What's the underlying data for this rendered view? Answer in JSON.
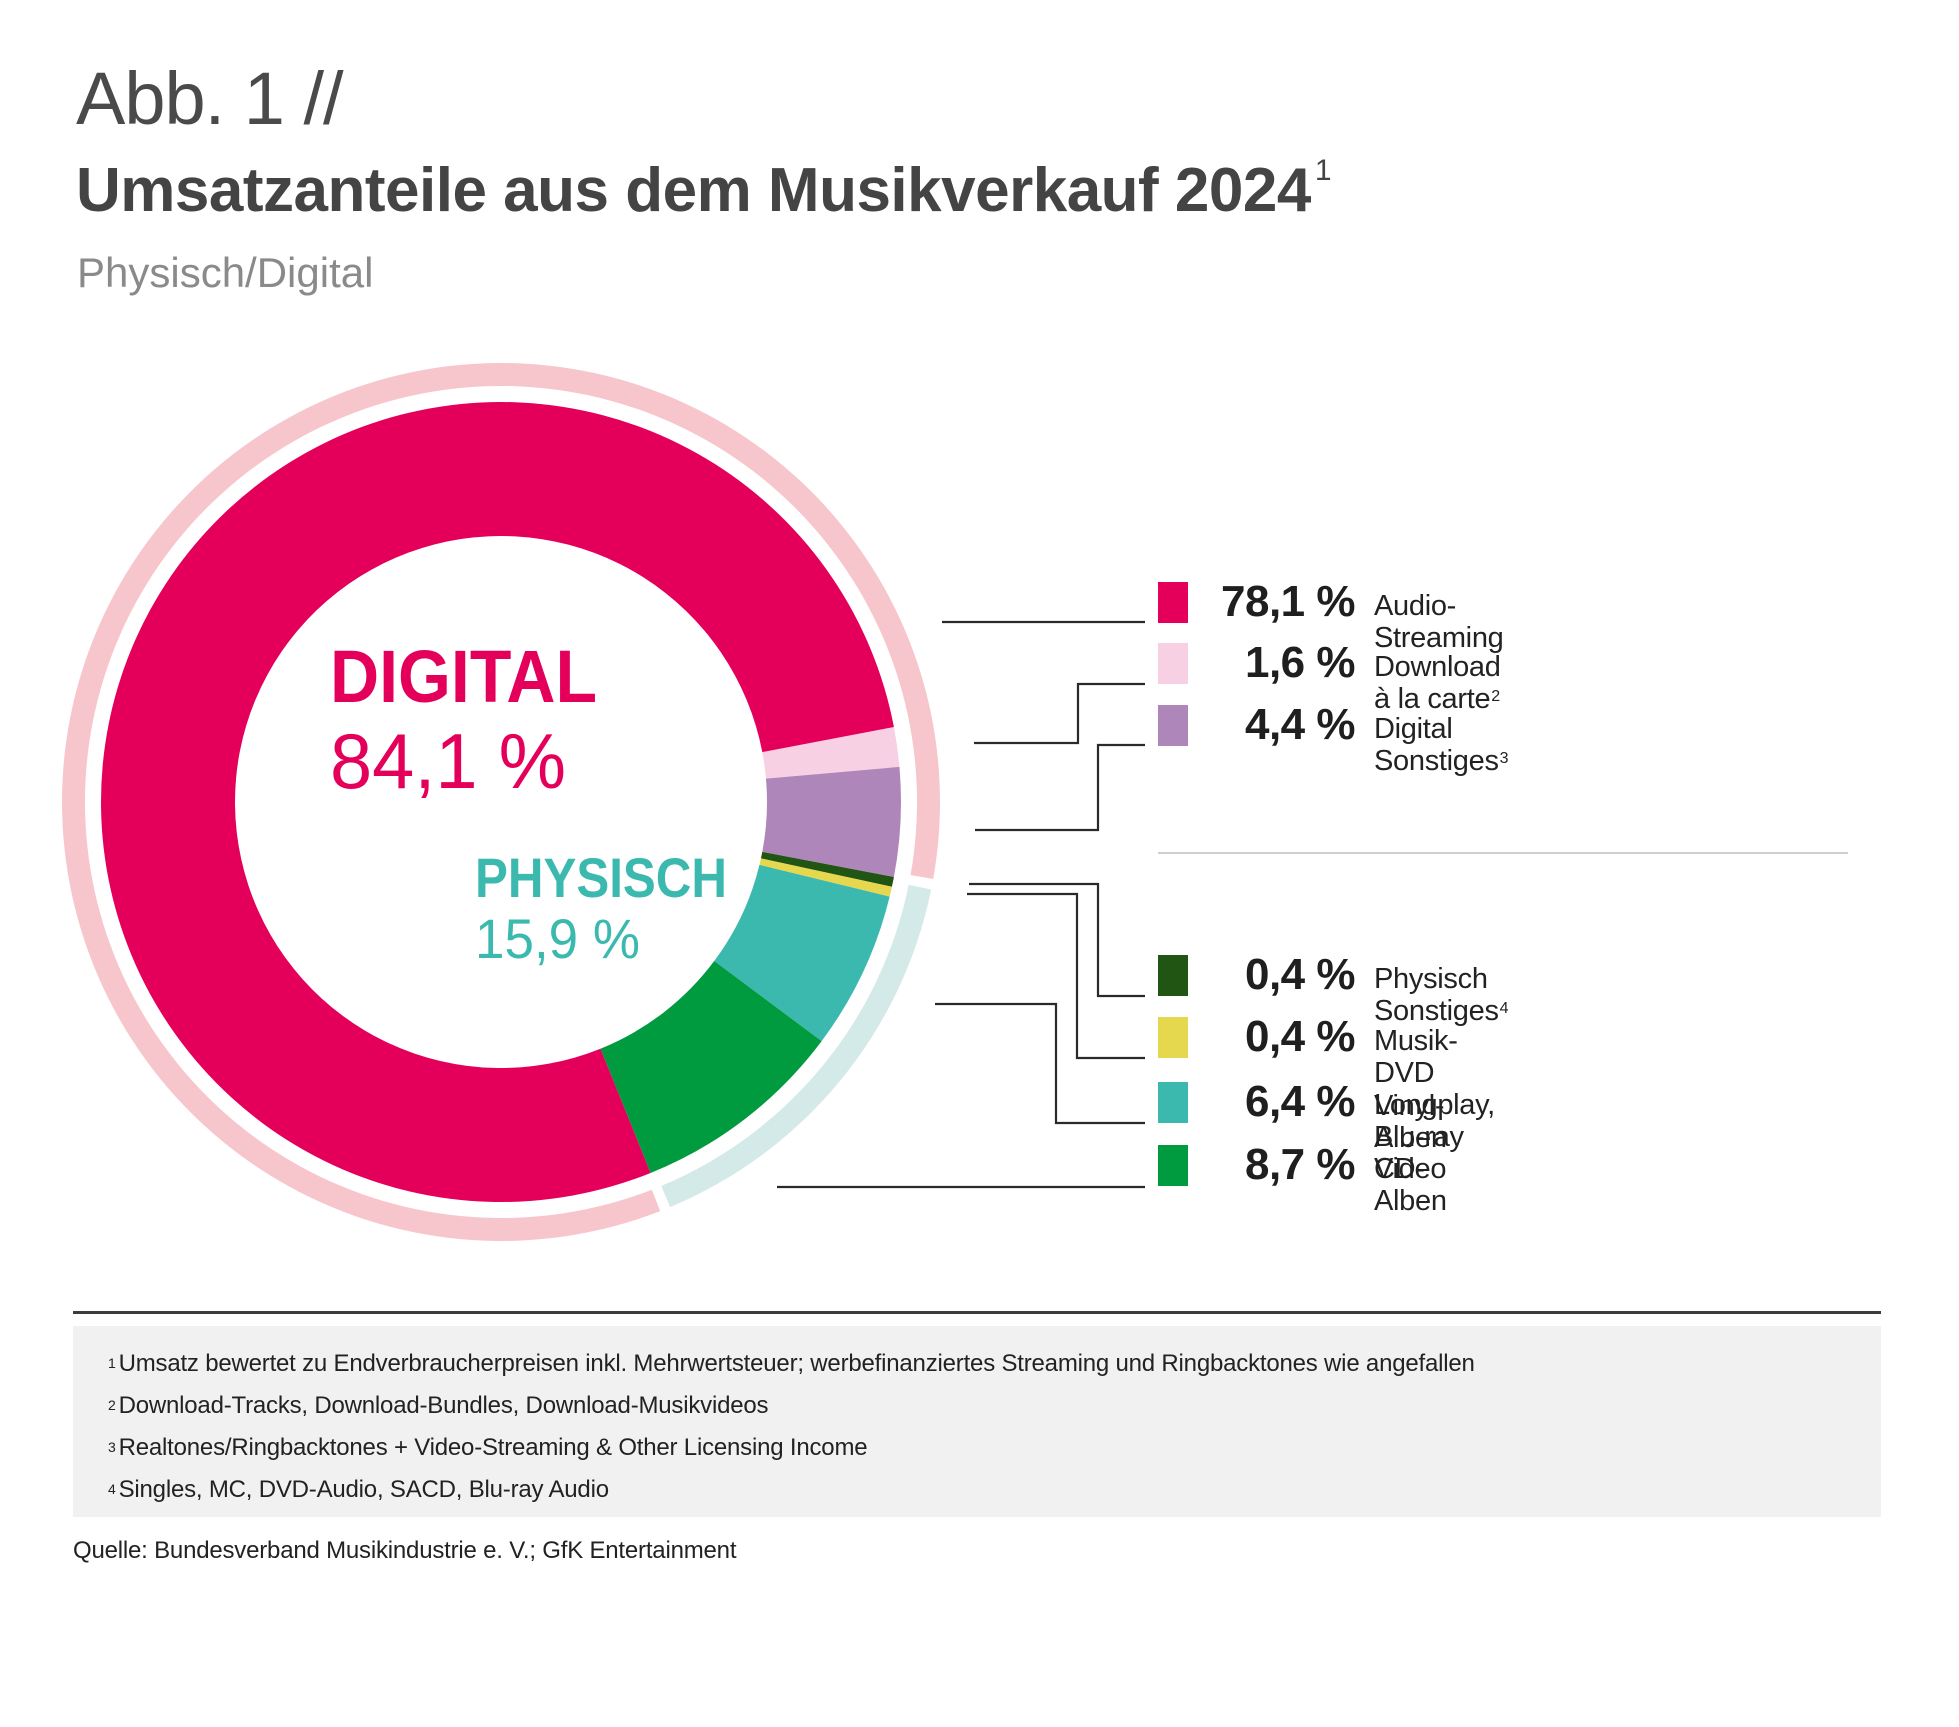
{
  "header": {
    "figure_label": "Abb. 1 //",
    "title": "Umsatzanteile aus dem Musikverkauf 2024",
    "title_footnote": "1",
    "subtitle": "Physisch/Digital"
  },
  "chart_data": {
    "type": "pie",
    "variant": "donut",
    "title": "Umsatzanteile aus dem Musikverkauf 2024",
    "subtitle": "Physisch/Digital",
    "unit": "%",
    "groups": [
      {
        "name": "DIGITAL",
        "value_label": "84,1 %",
        "value": 84.1,
        "color": "#E4005A",
        "ring_color": "#F7C6CC"
      },
      {
        "name": "PHYSISCH",
        "value_label": "15,9 %",
        "value": 15.9,
        "color": "#3CB9AF",
        "ring_color": "#D4EAE8"
      }
    ],
    "slices": [
      {
        "name": "Audio-Streaming",
        "value": 78.1,
        "value_label": "78,1 %",
        "group": "DIGITAL",
        "color": "#E4005A",
        "footnote": ""
      },
      {
        "name": "Download à la carte",
        "value": 1.6,
        "value_label": "1,6 %",
        "group": "DIGITAL",
        "color": "#F7D0E3",
        "footnote": "2"
      },
      {
        "name": "Digital Sonstiges",
        "value": 4.4,
        "value_label": "4,4 %",
        "group": "DIGITAL",
        "color": "#AE86B9",
        "footnote": "3"
      },
      {
        "name": "Physisch Sonstiges",
        "value": 0.4,
        "value_label": "0,4 %",
        "group": "PHYSISCH",
        "color": "#215514",
        "footnote": "4"
      },
      {
        "name": "Musik-DVD Longplay, Blu-ray Video",
        "value": 0.4,
        "value_label": "0,4 %",
        "group": "PHYSISCH",
        "color": "#E5D84E",
        "footnote": ""
      },
      {
        "name": "Vinyl-Alben",
        "value": 6.4,
        "value_label": "6,4 %",
        "group": "PHYSISCH",
        "color": "#3CB9AF",
        "footnote": ""
      },
      {
        "name": "CD-Alben",
        "value": 8.7,
        "value_label": "8,7 %",
        "group": "PHYSISCH",
        "color": "#009B3E",
        "footnote": ""
      }
    ],
    "legend_position": "right"
  },
  "footnotes": [
    {
      "mark": "1",
      "text": "Umsatz bewertet zu Endverbraucherpreisen inkl. Mehrwertsteuer; werbefinanziertes Streaming und Ringbacktones wie angefallen"
    },
    {
      "mark": "2",
      "text": "Download-Tracks, Download-Bundles, Download-Musikvideos"
    },
    {
      "mark": "3",
      "text": "Realtones/Ringbacktones + Video-Streaming & Other Licensing Income"
    },
    {
      "mark": "4",
      "text": "Singles, MC, DVD-Audio, SACD, Blu-ray Audio"
    }
  ],
  "source": "Quelle: Bundesverband Musikindustrie e. V.; GfK Entertainment"
}
